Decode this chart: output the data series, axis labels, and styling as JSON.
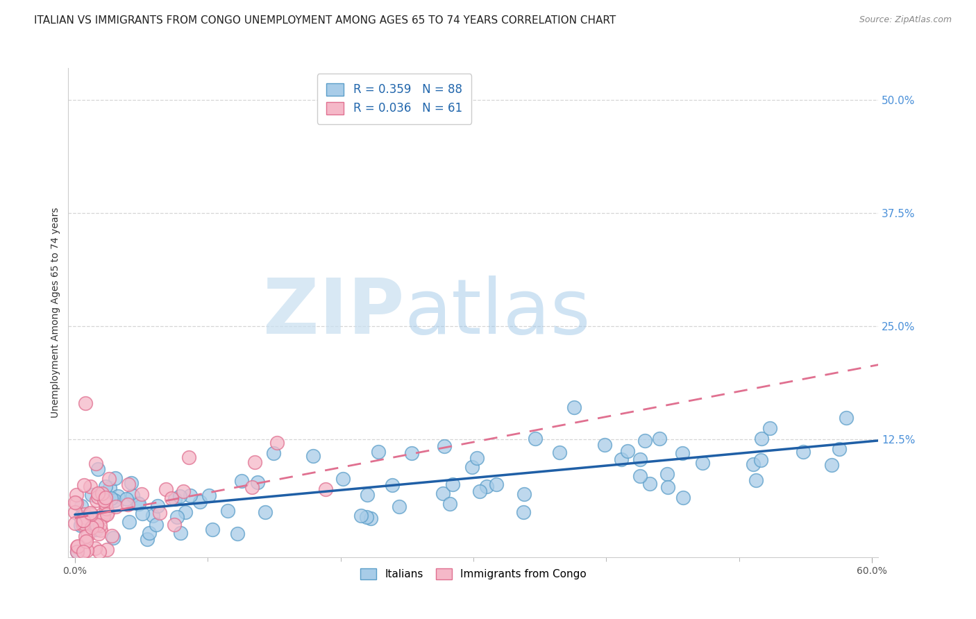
{
  "title": "ITALIAN VS IMMIGRANTS FROM CONGO UNEMPLOYMENT AMONG AGES 65 TO 74 YEARS CORRELATION CHART",
  "source": "Source: ZipAtlas.com",
  "ylabel": "Unemployment Among Ages 65 to 74 years",
  "watermark_zip": "ZIP",
  "watermark_atlas": "atlas",
  "legend_labels": [
    "Italians",
    "Immigrants from Congo"
  ],
  "r_italian": 0.359,
  "n_italian": 88,
  "r_congo": 0.036,
  "n_congo": 61,
  "xlim": [
    -0.005,
    0.605
  ],
  "ylim": [
    -0.005,
    0.535
  ],
  "yticks": [
    0.125,
    0.25,
    0.375,
    0.5
  ],
  "ytick_labels": [
    "12.5%",
    "25.0%",
    "37.5%",
    "50.0%"
  ],
  "color_italian": "#a8cce8",
  "color_italian_edge": "#5b9ec9",
  "color_italian_line": "#1f5fa6",
  "color_congo": "#f5b8c8",
  "color_congo_edge": "#e07090",
  "color_congo_line": "#e07090",
  "background_color": "#ffffff",
  "grid_color": "#cccccc",
  "title_fontsize": 11,
  "axis_label_fontsize": 10,
  "tick_fontsize": 10,
  "marker_size": 200,
  "trend_it_intercept": 0.042,
  "trend_it_slope": 0.135,
  "trend_cg_intercept": 0.038,
  "trend_cg_slope": 0.28
}
